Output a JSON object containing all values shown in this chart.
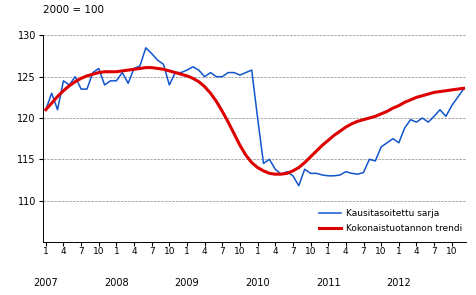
{
  "title_label": "2000 = 100",
  "ylim": [
    105,
    130
  ],
  "yticks": [
    110,
    115,
    120,
    125,
    130
  ],
  "trend_color": "#dd0000",
  "seasonal_color": "#1155cc",
  "trend_linewidth": 2.2,
  "seasonal_linewidth": 1.1,
  "legend_trend": "Kokonaistuotannon trendi",
  "legend_seasonal": "Kausitasoitettu sarja",
  "trend": [
    121.0,
    121.8,
    122.6,
    123.3,
    123.9,
    124.4,
    124.8,
    125.1,
    125.3,
    125.5,
    125.6,
    125.6,
    125.6,
    125.7,
    125.8,
    125.9,
    126.0,
    126.1,
    126.1,
    126.0,
    125.9,
    125.7,
    125.5,
    125.3,
    125.1,
    124.8,
    124.4,
    123.8,
    123.0,
    122.0,
    120.8,
    119.5,
    118.1,
    116.7,
    115.5,
    114.6,
    114.0,
    113.6,
    113.3,
    113.2,
    113.2,
    113.3,
    113.6,
    114.0,
    114.6,
    115.3,
    116.0,
    116.7,
    117.3,
    117.9,
    118.4,
    118.9,
    119.3,
    119.6,
    119.8,
    120.0,
    120.2,
    120.5,
    120.8,
    121.2,
    121.5,
    121.9,
    122.2,
    122.5,
    122.7,
    122.9,
    123.1,
    123.2,
    123.3,
    123.4,
    123.5,
    123.6
  ],
  "seasonal": [
    121.0,
    123.0,
    121.0,
    124.5,
    124.0,
    125.0,
    123.5,
    123.5,
    125.5,
    126.0,
    124.0,
    124.5,
    124.5,
    125.5,
    124.2,
    126.0,
    126.3,
    128.5,
    127.8,
    127.0,
    126.5,
    124.0,
    125.5,
    125.5,
    125.8,
    126.2,
    125.8,
    125.0,
    125.5,
    125.0,
    125.0,
    125.5,
    125.5,
    125.2,
    125.5,
    125.8,
    120.0,
    114.5,
    115.0,
    113.8,
    113.2,
    113.5,
    113.0,
    111.8,
    113.8,
    113.3,
    113.3,
    113.1,
    113.0,
    113.0,
    113.1,
    113.5,
    113.3,
    113.2,
    113.4,
    115.0,
    114.8,
    116.5,
    117.0,
    117.5,
    117.0,
    118.8,
    119.8,
    119.5,
    120.0,
    119.5,
    120.2,
    121.0,
    120.2,
    121.5,
    122.5,
    123.5
  ],
  "month_ticks": [
    0,
    3,
    6,
    9,
    12,
    15,
    18,
    21,
    24,
    27,
    30,
    33,
    36,
    39,
    42,
    45,
    48,
    51,
    54,
    57,
    60,
    63,
    66,
    69
  ],
  "month_tick_labels": [
    "1",
    "4",
    "7",
    "10",
    "1",
    "4",
    "7",
    "10",
    "1",
    "4",
    "7",
    "10",
    "1",
    "4",
    "7",
    "10",
    "1",
    "4",
    "7",
    "10",
    "1",
    "4",
    "7",
    "10"
  ],
  "year_positions": [
    0,
    12,
    24,
    36,
    48,
    60,
    72
  ],
  "year_labels": [
    "2007",
    "2008",
    "2009",
    "2010",
    "2011",
    "2012",
    ""
  ],
  "xlim": [
    -0.5,
    71.5
  ]
}
